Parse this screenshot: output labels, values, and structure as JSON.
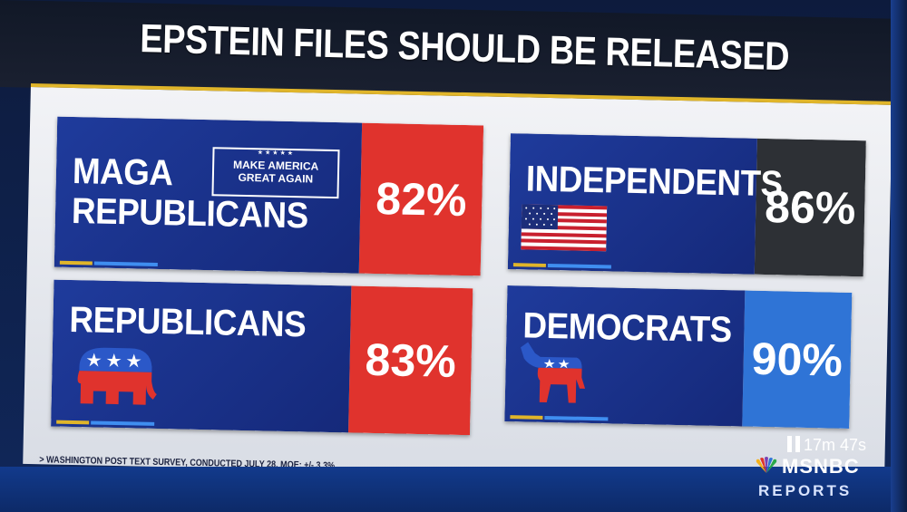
{
  "title": "EPSTEIN FILES SHOULD BE RELEASED",
  "cards": {
    "maga": {
      "line1": "MAGA",
      "line2": "REPUBLICANS",
      "badge_stars": "★★★★★",
      "badge_line1": "MAKE AMERICA",
      "badge_line2": "GREAT AGAIN",
      "pct": "82%",
      "color": "#e0332d"
    },
    "republicans": {
      "name": "REPUBLICANS",
      "pct": "83%",
      "color": "#e0332d",
      "icon": "elephant-icon"
    },
    "independents": {
      "name": "INDEPENDENTS",
      "pct": "86%",
      "color": "#2d3035",
      "icon": "us-flag-icon"
    },
    "democrats": {
      "name": "DEMOCRATS",
      "pct": "90%",
      "color": "#2f74d6",
      "icon": "donkey-icon"
    }
  },
  "footnote": "> WASHINGTON POST TEXT SURVEY, CONDUCTED JULY 28, MOE: +/- 3.3%",
  "broadcast": {
    "timer": "17m 47s",
    "network": "MSNBC",
    "show": "REPORTS"
  }
}
